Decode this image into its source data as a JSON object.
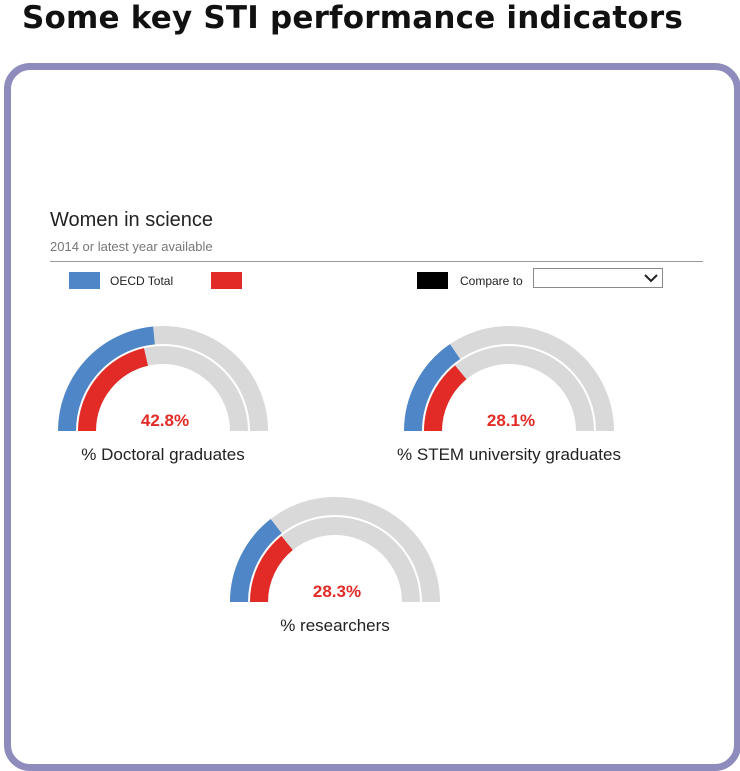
{
  "page": {
    "title": "Some key STI performance indicators"
  },
  "widget": {
    "title": "Women in science",
    "subtitle": "2014 or latest year available",
    "legend": {
      "oecd_label": "OECD Total",
      "oecd_color": "#4e86c7",
      "country_label": "",
      "country_color": "#e22b26",
      "compare_label": "Compare to",
      "compare_color": "#000000",
      "compare_select_value": ""
    }
  },
  "chart_data": {
    "type": "gauge",
    "scale_max_percent": 100,
    "track_color": "#d9d9d9",
    "series": [
      {
        "name": "OECD Total",
        "color": "#4e86c7"
      },
      {
        "name": "",
        "color": "#e22b26"
      }
    ],
    "gauges": [
      {
        "label": "% Doctoral graduates",
        "value_text": "42.8%",
        "country_value": 42.8,
        "oecd_value": 47
      },
      {
        "label": "% STEM university graduates",
        "value_text": "28.1%",
        "country_value": 28.1,
        "oecd_value": 31
      },
      {
        "label": "% researchers",
        "value_text": "28.3%",
        "country_value": 28.3,
        "oecd_value": 29
      }
    ]
  }
}
